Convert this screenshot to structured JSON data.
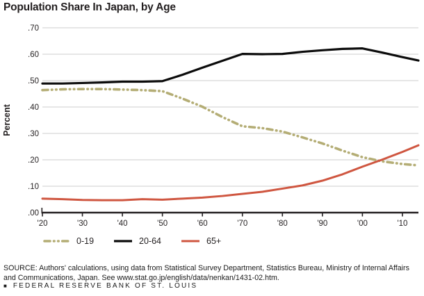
{
  "page": {
    "title": "Population Share In Japan, by Age",
    "source_note": "SOURCE: Authors' calculations, using data from Statistical Survey Department, Statistics Bureau, Ministry of Internal Affairs and Communications, Japan. See www.stat.go.jp/english/data/nenkan/1431-02.htm.",
    "footer": "FEDERAL RESERVE BANK OF ST. LOUIS",
    "footer_bullet": "■"
  },
  "colors": {
    "text": "#231f20",
    "axis": "#231f20",
    "gridline": "#cdcdcd",
    "series_0_19": "#b4ad75",
    "series_20_64": "#0b0b0b",
    "series_65_plus": "#cf5640"
  },
  "chart_data": {
    "type": "line",
    "title": "Population Share In Japan, by Age",
    "xlabel": "",
    "ylabel": "Percent",
    "ylim": [
      0.0,
      0.7
    ],
    "y_tick_step": 0.1,
    "y_ticks": [
      ".00",
      ".10",
      ".20",
      ".30",
      ".40",
      ".50",
      ".60",
      ".70"
    ],
    "x_ticks": [
      "'20",
      "'30",
      "'40",
      "'50",
      "'60",
      "'70",
      "'80",
      "'90",
      "'00",
      "'10"
    ],
    "x_tick_years": [
      1920,
      1930,
      1940,
      1950,
      1960,
      1970,
      1980,
      1990,
      2000,
      2010
    ],
    "x_range_years": [
      1920,
      2014
    ],
    "grid": "horizontal",
    "legend_position": "bottom",
    "x": [
      1920,
      1925,
      1930,
      1935,
      1940,
      1945,
      1950,
      1955,
      1960,
      1965,
      1970,
      1975,
      1980,
      1985,
      1990,
      1995,
      2000,
      2005,
      2010,
      2014
    ],
    "series": [
      {
        "name": "0-19",
        "color": "#b4ad75",
        "style": "dash-dot-dot",
        "values": [
          0.464,
          0.467,
          0.468,
          0.468,
          0.466,
          0.464,
          0.46,
          0.432,
          0.401,
          0.362,
          0.327,
          0.32,
          0.307,
          0.285,
          0.262,
          0.235,
          0.21,
          0.194,
          0.184,
          0.179
        ]
      },
      {
        "name": "20-64",
        "color": "#0b0b0b",
        "style": "solid",
        "values": [
          0.489,
          0.489,
          0.491,
          0.493,
          0.496,
          0.496,
          0.498,
          0.522,
          0.549,
          0.575,
          0.601,
          0.6,
          0.601,
          0.609,
          0.615,
          0.62,
          0.622,
          0.606,
          0.589,
          0.576
        ]
      },
      {
        "name": "65+",
        "color": "#cf5640",
        "style": "solid",
        "values": [
          0.053,
          0.051,
          0.048,
          0.047,
          0.047,
          0.051,
          0.049,
          0.053,
          0.057,
          0.063,
          0.071,
          0.079,
          0.091,
          0.103,
          0.121,
          0.145,
          0.174,
          0.201,
          0.23,
          0.255
        ]
      }
    ]
  }
}
